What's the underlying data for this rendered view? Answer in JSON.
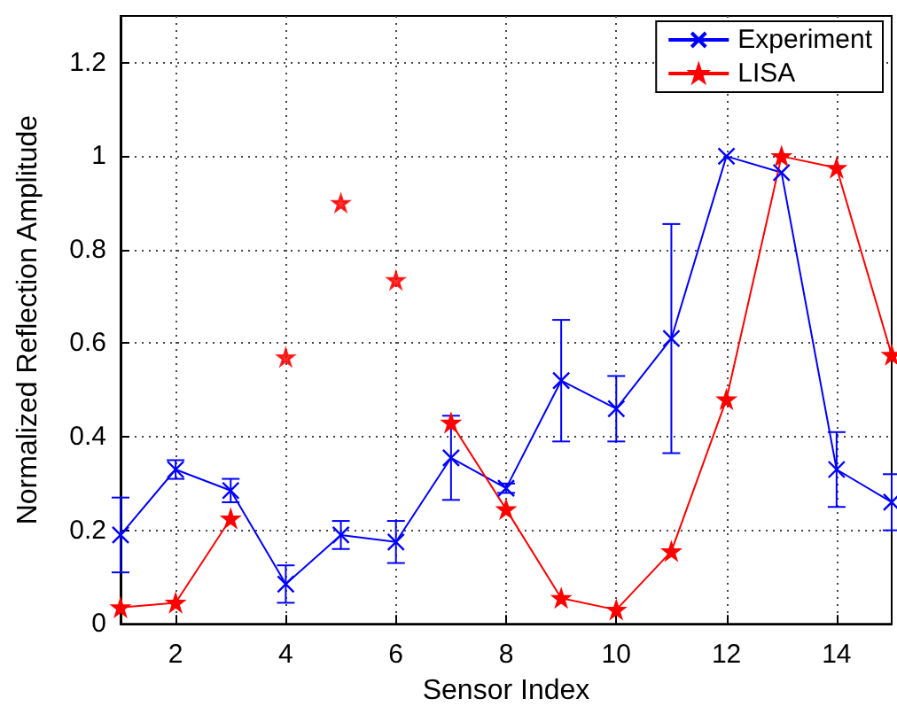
{
  "chart_data": {
    "type": "line",
    "xlabel": "Sensor Index",
    "ylabel": "Normalized Reflection Amplitude",
    "x": [
      1,
      2,
      3,
      4,
      5,
      6,
      7,
      8,
      9,
      10,
      11,
      12,
      13,
      14,
      15
    ],
    "xlim": [
      1,
      15
    ],
    "xticks": [
      2,
      4,
      6,
      8,
      10,
      12,
      14
    ],
    "ylim": [
      0,
      1.3
    ],
    "yticks": [
      0,
      0.2,
      0.4,
      0.6,
      0.8,
      1,
      1.2
    ],
    "grid": true,
    "legend": "top right",
    "line_style": "solid",
    "series": [
      {
        "name": "Experiment",
        "color": "#0000ff",
        "marker": "cross",
        "values": [
          0.19,
          0.33,
          0.285,
          0.085,
          0.19,
          0.175,
          0.355,
          0.29,
          0.52,
          0.46,
          0.61,
          1.0,
          0.965,
          0.33,
          0.26
        ],
        "errors": [
          0.08,
          0.02,
          0.025,
          0.04,
          0.03,
          0.045,
          0.09,
          0.01,
          0.13,
          0.07,
          0.245,
          null,
          null,
          0.08,
          0.06
        ]
      },
      {
        "name": "LISA",
        "color": "#ff0000",
        "marker": "star",
        "values": [
          0.035,
          0.045,
          0.225,
          null,
          null,
          null,
          0.43,
          0.245,
          0.055,
          0.03,
          0.155,
          0.48,
          1.0,
          0.975,
          0.575
        ]
      },
      {
        "type": "scatter",
        "color": "#ff0000",
        "marker": "star",
        "x": [
          4,
          5,
          6
        ],
        "values": [
          0.57,
          0.9,
          0.735
        ]
      }
    ]
  }
}
